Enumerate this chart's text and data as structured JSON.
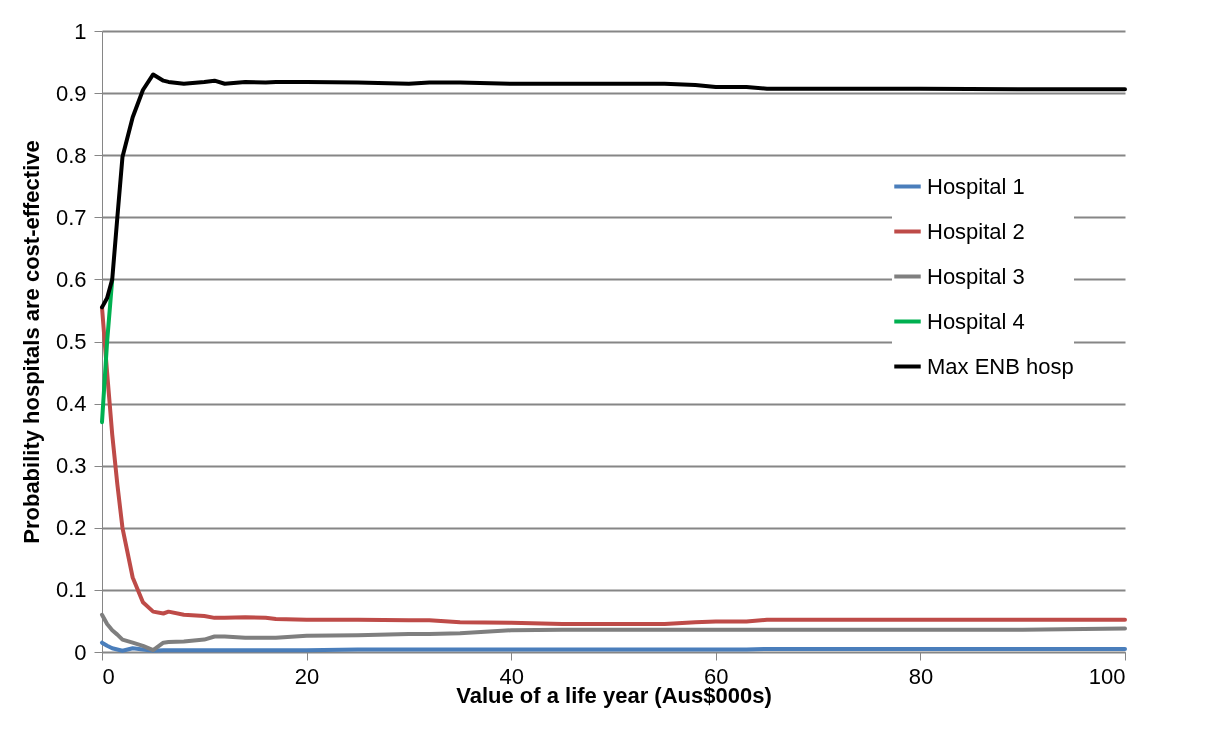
{
  "chart_data": {
    "type": "line",
    "xlabel": "Value of a life year (Aus$000s)",
    "ylabel": "Probability hospitals are cost-effective",
    "x": [
      0,
      0.5,
      1,
      1.5,
      2,
      3,
      4,
      5,
      6,
      6.5,
      8,
      10,
      11,
      12,
      14,
      16,
      17,
      20,
      25,
      30,
      32,
      35,
      40,
      45,
      55,
      58,
      60,
      63,
      65,
      80,
      90,
      100
    ],
    "xlim": [
      0,
      100
    ],
    "xticks": [
      0,
      20,
      40,
      60,
      80,
      100
    ],
    "ylim": [
      0,
      1
    ],
    "yticks": [
      0,
      0.1,
      0.2,
      0.3,
      0.4,
      0.5,
      0.6,
      0.7,
      0.8,
      0.9,
      1
    ],
    "grid": "y",
    "legend": "right",
    "marker": "none",
    "line_style": "solid",
    "series": [
      {
        "name": "Hospital 1",
        "color": "#4a7ebb",
        "values": [
          0.015,
          0.01,
          0.006,
          0.004,
          0.002,
          0.006,
          0.004,
          0.002,
          0.003,
          0.003,
          0.003,
          0.003,
          0.003,
          0.003,
          0.003,
          0.003,
          0.003,
          0.003,
          0.004,
          0.004,
          0.004,
          0.004,
          0.004,
          0.004,
          0.004,
          0.004,
          0.004,
          0.004,
          0.005,
          0.005,
          0.005,
          0.005
        ]
      },
      {
        "name": "Hospital 2",
        "color": "#be4b48",
        "values": [
          0.555,
          0.45,
          0.35,
          0.27,
          0.2,
          0.12,
          0.08,
          0.065,
          0.062,
          0.065,
          0.06,
          0.058,
          0.055,
          0.055,
          0.056,
          0.055,
          0.053,
          0.052,
          0.052,
          0.051,
          0.051,
          0.048,
          0.047,
          0.045,
          0.045,
          0.048,
          0.049,
          0.049,
          0.052,
          0.052,
          0.052,
          0.052
        ]
      },
      {
        "name": "Hospital 3",
        "color": "#7f7f7f",
        "values": [
          0.06,
          0.045,
          0.035,
          0.028,
          0.02,
          0.015,
          0.01,
          0.003,
          0.015,
          0.016,
          0.017,
          0.02,
          0.025,
          0.025,
          0.023,
          0.023,
          0.023,
          0.026,
          0.027,
          0.029,
          0.029,
          0.03,
          0.035,
          0.036,
          0.036,
          0.036,
          0.036,
          0.036,
          0.036,
          0.036,
          0.036,
          0.038
        ]
      },
      {
        "name": "Hospital 4",
        "color": "#00b050",
        "values": [
          0.37,
          0.5,
          0.6,
          null,
          null,
          null,
          null,
          null,
          null,
          null,
          null,
          null,
          null,
          null,
          null,
          null,
          null,
          null,
          null,
          null,
          null,
          null,
          null,
          null,
          null,
          null,
          null,
          null,
          null,
          null,
          null,
          null
        ]
      },
      {
        "name": "Max ENB hosp",
        "color": "#000000",
        "values": [
          0.555,
          0.57,
          0.6,
          0.7,
          0.797,
          0.861,
          0.905,
          0.93,
          0.92,
          0.918,
          0.915,
          0.918,
          0.92,
          0.915,
          0.918,
          0.917,
          0.918,
          0.918,
          0.917,
          0.915,
          0.917,
          0.917,
          0.915,
          0.915,
          0.915,
          0.913,
          0.91,
          0.91,
          0.907,
          0.907,
          0.906,
          0.906
        ]
      }
    ]
  }
}
